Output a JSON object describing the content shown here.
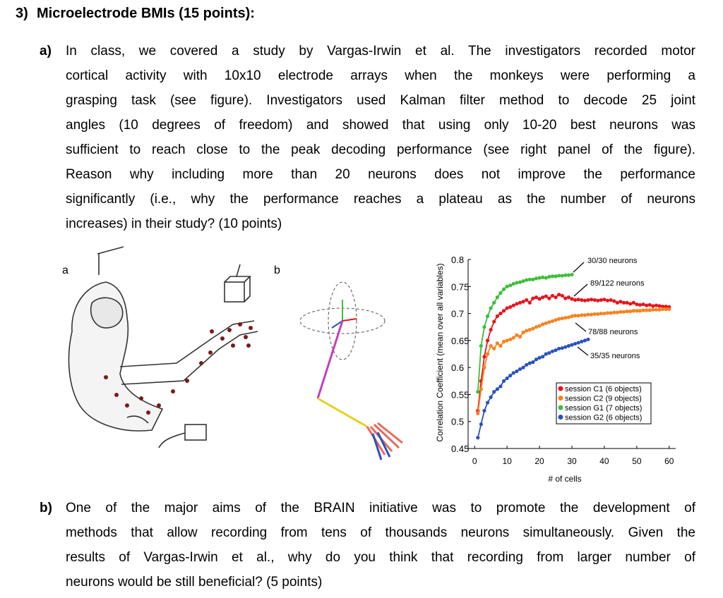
{
  "header": {
    "number": "3)",
    "title": "Microelectrode BMIs (15 points):"
  },
  "parts": [
    {
      "label": "a)",
      "lines": [
        "In class, we covered a study by Vargas-Irwin et al. The investigators recorded motor",
        "cortical activity with 10x10 electrode arrays when the monkeys were performing a",
        "grasping task (see figure). Investigators used Kalman filter method to decode 25 joint",
        "angles (10 degrees of freedom) and showed that using only 10-20 best neurons was",
        "sufficient to reach close to the peak decoding performance (see right panel of the figure).",
        "Reason why including more than 20 neurons does not improve the performance",
        "significantly (i.e., why the performance reaches a plateau as the number of neurons",
        "increases) in their study? (10 points)"
      ]
    },
    {
      "label": "b)",
      "lines": [
        "One of the major aims of the BRAIN initiative was to promote the development of",
        "methods that allow recording from tens of thousands neurons simultaneously. Given the",
        "results of Vargas-Irwin et al., why do you think that recording from larger number of",
        "neurons would be still beneficial? (5 points)"
      ]
    }
  ],
  "figure": {
    "panel_labels": [
      "a",
      "b"
    ]
  },
  "chart_data": {
    "type": "line",
    "xlabel": "# of cells",
    "ylabel": "Correlation Coefficient (mean over all variables)",
    "xlim": [
      -2,
      62
    ],
    "xticks": [
      0,
      10,
      20,
      30,
      40,
      50,
      60
    ],
    "ylim": [
      0.45,
      0.8
    ],
    "yticks": [
      0.45,
      0.5,
      0.55,
      0.6,
      0.65,
      0.7,
      0.75,
      0.8
    ],
    "x": [
      1,
      2,
      3,
      4,
      5,
      6,
      7,
      8,
      9,
      10,
      11,
      12,
      13,
      14,
      15,
      16,
      17,
      18,
      19,
      20,
      21,
      22,
      23,
      24,
      25,
      26,
      27,
      28,
      29,
      30,
      31,
      32,
      33,
      34,
      35,
      36,
      37,
      38,
      39,
      40,
      41,
      42,
      43,
      44,
      45,
      46,
      47,
      48,
      49,
      50,
      51,
      52,
      53,
      54,
      55,
      56,
      57,
      58,
      59,
      60
    ],
    "series": [
      {
        "name": "session C1 (6 objects)",
        "color": "#e8141b",
        "values": [
          0.52,
          0.575,
          0.62,
          0.65,
          0.67,
          0.685,
          0.695,
          0.7,
          0.705,
          0.71,
          0.712,
          0.715,
          0.718,
          0.72,
          0.722,
          0.725,
          0.72,
          0.728,
          0.73,
          0.727,
          0.73,
          0.732,
          0.728,
          0.733,
          0.73,
          0.735,
          0.733,
          0.728,
          0.73,
          0.727,
          0.725,
          0.726,
          0.725,
          0.724,
          0.725,
          0.726,
          0.725,
          0.724,
          0.725,
          0.726,
          0.724,
          0.725,
          0.723,
          0.72,
          0.722,
          0.72,
          0.72,
          0.718,
          0.72,
          0.717,
          0.716,
          0.717,
          0.715,
          0.716,
          0.714,
          0.715,
          0.714,
          0.713,
          0.713,
          0.712
        ]
      },
      {
        "name": "session C2 (9 objects)",
        "color": "#f7821e",
        "values": [
          0.515,
          0.56,
          0.6,
          0.625,
          0.64,
          0.635,
          0.645,
          0.64,
          0.648,
          0.65,
          0.652,
          0.655,
          0.66,
          0.657,
          0.665,
          0.668,
          0.67,
          0.672,
          0.675,
          0.677,
          0.68,
          0.682,
          0.684,
          0.686,
          0.688,
          0.69,
          0.691,
          0.692,
          0.693,
          0.695,
          0.696,
          0.696,
          0.697,
          0.697,
          0.698,
          0.698,
          0.699,
          0.699,
          0.7,
          0.7,
          0.701,
          0.701,
          0.702,
          0.702,
          0.703,
          0.703,
          0.704,
          0.704,
          0.705,
          0.705,
          0.705,
          0.706,
          0.706,
          0.706,
          0.707,
          0.707,
          0.707,
          0.708,
          0.708,
          0.708
        ]
      },
      {
        "name": "session G1 (7 objects)",
        "color": "#3cbf37",
        "values": [
          0.555,
          0.64,
          0.675,
          0.695,
          0.71,
          0.72,
          0.73,
          0.738,
          0.745,
          0.75,
          0.752,
          0.755,
          0.757,
          0.758,
          0.76,
          0.762,
          0.763,
          0.763,
          0.765,
          0.766,
          0.767,
          0.766,
          0.768,
          0.769,
          0.769,
          0.77,
          0.77,
          0.771,
          0.771,
          0.772,
          null,
          null,
          null,
          null,
          null,
          null,
          null,
          null,
          null,
          null,
          null,
          null,
          null,
          null,
          null,
          null,
          null,
          null,
          null,
          null,
          null,
          null,
          null,
          null,
          null,
          null,
          null,
          null,
          null,
          null
        ]
      },
      {
        "name": "session G2 (6 objects)",
        "color": "#2a52be",
        "values": [
          0.47,
          0.495,
          0.52,
          0.535,
          0.545,
          0.555,
          0.56,
          0.565,
          0.575,
          0.58,
          0.585,
          0.59,
          0.593,
          0.597,
          0.6,
          0.605,
          0.608,
          0.61,
          0.615,
          0.618,
          0.62,
          0.625,
          0.627,
          0.63,
          0.632,
          0.635,
          0.636,
          0.638,
          0.64,
          0.642,
          0.644,
          0.646,
          0.648,
          0.65,
          0.652,
          null,
          null,
          null,
          null,
          null,
          null,
          null,
          null,
          null,
          null,
          null,
          null,
          null,
          null,
          null,
          null,
          null,
          null,
          null,
          null,
          null,
          null,
          null,
          null,
          null
        ]
      }
    ],
    "annotations": [
      "30/30 neurons",
      "89/122 neurons",
      "78/88 neurons",
      "35/35 neurons"
    ]
  }
}
